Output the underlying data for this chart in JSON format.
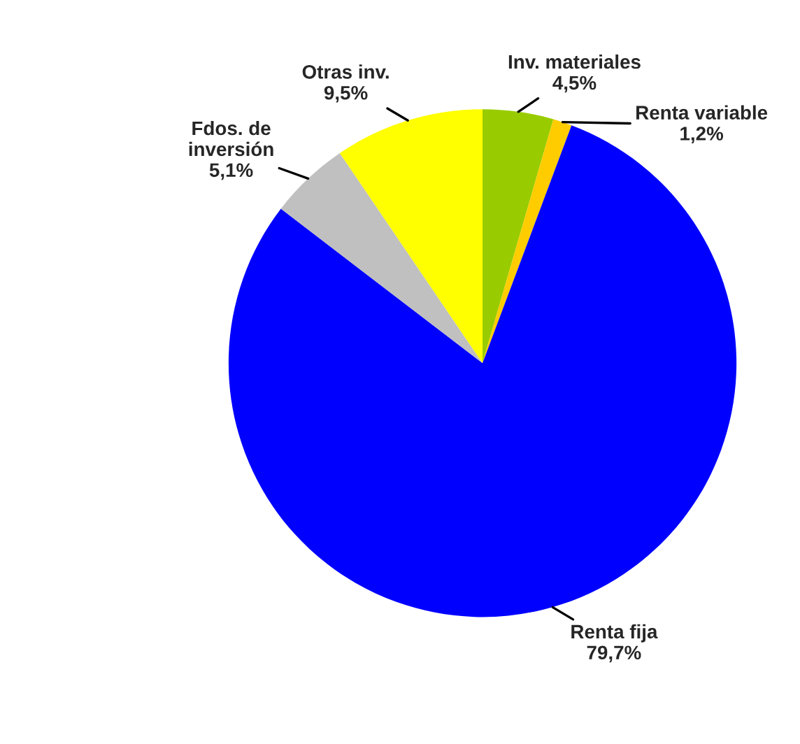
{
  "chart_data": {
    "type": "pie",
    "categories": [
      "Inv. materiales",
      "Renta variable",
      "Renta fija",
      "Fdos. de\ninversión",
      "Otras inv."
    ],
    "values": [
      4.5,
      1.2,
      79.7,
      5.1,
      9.5
    ],
    "value_labels": [
      "4,5%",
      "1,2%",
      "79,7%",
      "5,1%",
      "9,5%"
    ],
    "colors": [
      "#99cc00",
      "#ffcc00",
      "#0000ff",
      "#c0c0c0",
      "#ffff00"
    ]
  }
}
